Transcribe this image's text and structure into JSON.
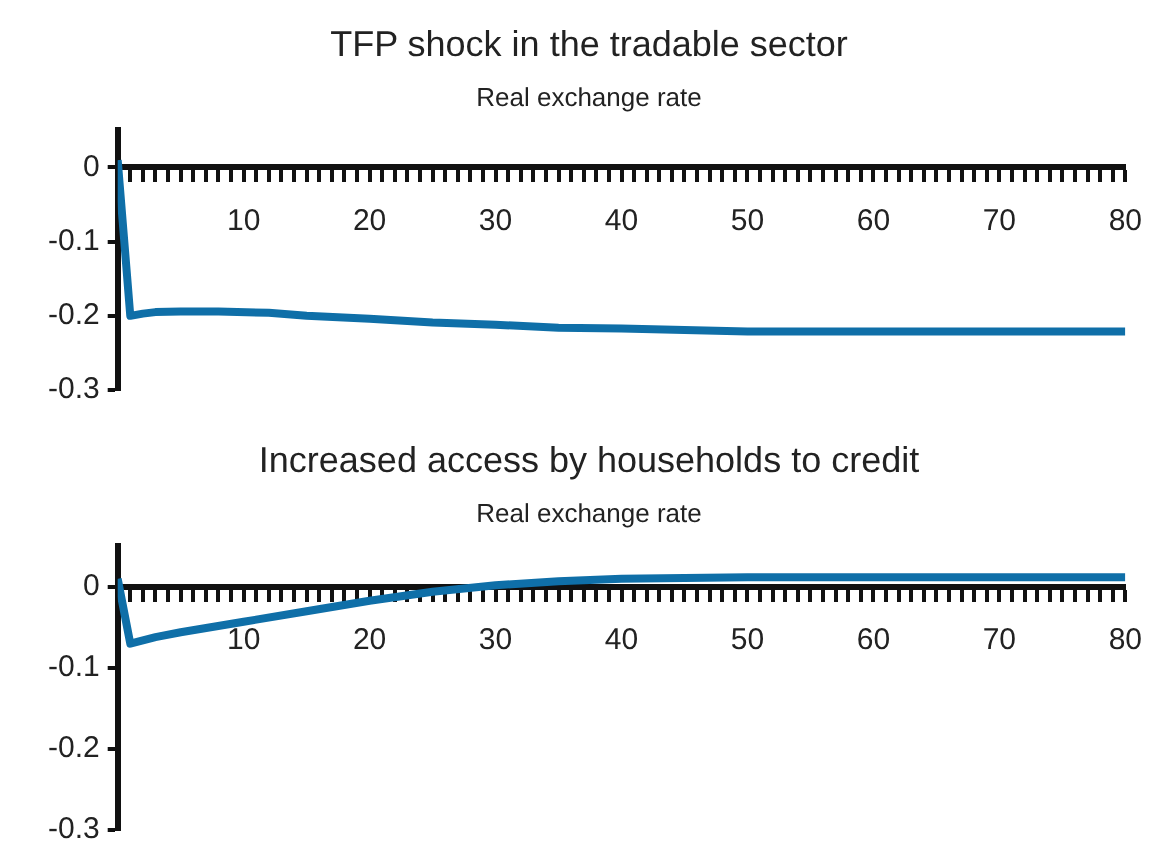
{
  "chart_data": [
    {
      "type": "line",
      "title": "TFP shock in the tradable sector",
      "subtitle": "Real exchange rate",
      "x": [
        0,
        1,
        2,
        3,
        5,
        8,
        12,
        15,
        20,
        25,
        30,
        35,
        40,
        45,
        50,
        60,
        70,
        80
      ],
      "series": [
        {
          "color": "#0f6fa8",
          "values": [
            0.01,
            -0.2,
            -0.197,
            -0.195,
            -0.194,
            -0.194,
            -0.196,
            -0.2,
            -0.204,
            -0.209,
            -0.212,
            -0.216,
            -0.217,
            -0.219,
            -0.221,
            -0.221,
            -0.221,
            -0.221
          ]
        }
      ],
      "xlim": [
        0,
        80
      ],
      "xticks": [
        10,
        20,
        30,
        40,
        50,
        60,
        70,
        80
      ],
      "ylim": [
        -0.3,
        0.05
      ],
      "yticks": [
        0,
        -0.1,
        -0.2,
        -0.3
      ],
      "grid": false,
      "legend": false,
      "marker": "none",
      "line_style": "solid"
    },
    {
      "type": "line",
      "title": "Increased access by households to credit",
      "subtitle": "Real exchange rate",
      "x": [
        0,
        1,
        3,
        5,
        10,
        15,
        20,
        25,
        30,
        35,
        40,
        45,
        50,
        60,
        70,
        80
      ],
      "series": [
        {
          "color": "#0f6fa8",
          "values": [
            0.01,
            -0.07,
            -0.062,
            -0.056,
            -0.043,
            -0.03,
            -0.017,
            -0.006,
            0.002,
            0.007,
            0.01,
            0.011,
            0.012,
            0.012,
            0.012,
            0.012
          ]
        }
      ],
      "xlim": [
        0,
        80
      ],
      "xticks": [
        10,
        20,
        30,
        40,
        50,
        60,
        70,
        80
      ],
      "ylim": [
        -0.3,
        0.05
      ],
      "yticks": [
        0,
        -0.1,
        -0.2,
        -0.3
      ],
      "grid": false,
      "legend": false,
      "marker": "none",
      "line_style": "solid"
    }
  ]
}
